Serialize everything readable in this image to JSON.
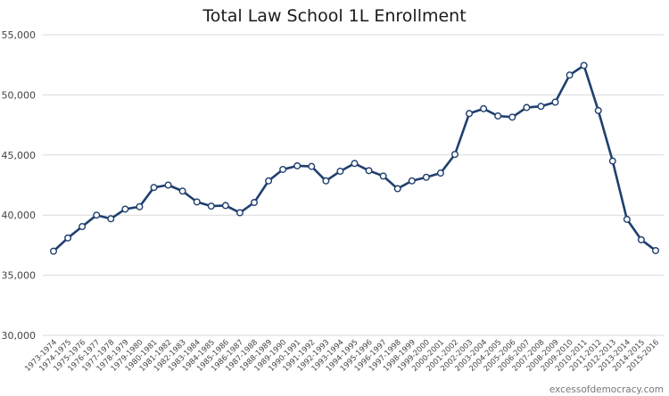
{
  "chart_data": {
    "type": "line",
    "title": "Total Law School 1L Enrollment",
    "xlabel": "",
    "ylabel": "",
    "ylim": [
      30000,
      55000
    ],
    "y_ticks": [
      "30,000",
      "35,000",
      "40,000",
      "45,000",
      "50,000",
      "55,000"
    ],
    "grid": "horizontal",
    "legend": "none",
    "colors": {
      "line": "#1f3f6e",
      "marker_fill": "#ffffff",
      "grid": "#d9d9d9"
    },
    "categories": [
      "1973-1974",
      "1974-1975",
      "1975-1976",
      "1976-1977",
      "1977-1978",
      "1978-1979",
      "1979-1980",
      "1980-1981",
      "1981-1982",
      "1982-1983",
      "1983-1984",
      "1984-1985",
      "1985-1986",
      "1986-1987",
      "1987-1988",
      "1988-1989",
      "1989-1990",
      "1990-1991",
      "1991-1992",
      "1992-1993",
      "1993-1994",
      "1994-1995",
      "1995-1996",
      "1996-1997",
      "1997-1998",
      "1998-1999",
      "1999-2000",
      "2000-2001",
      "2001-2002",
      "2002-2003",
      "2003-2004",
      "2004-2005",
      "2005-2006",
      "2006-2007",
      "2007-2008",
      "2008-2009",
      "2009-2010",
      "2010-2011",
      "2011-2012",
      "2012-2013",
      "2013-2014",
      "2014-2015",
      "2015-2016"
    ],
    "values": [
      37000,
      38100,
      39050,
      40000,
      39700,
      40500,
      40700,
      42300,
      42500,
      42000,
      41100,
      40750,
      40800,
      40200,
      41050,
      42850,
      43800,
      44100,
      44050,
      42850,
      43650,
      44300,
      43700,
      43250,
      42200,
      42850,
      43150,
      43500,
      45050,
      48450,
      48850,
      48250,
      48150,
      48950,
      49050,
      49400,
      51650,
      52450,
      48700,
      44500,
      39650,
      37950,
      37050
    ]
  },
  "credit": "excessofdemocracy.com"
}
